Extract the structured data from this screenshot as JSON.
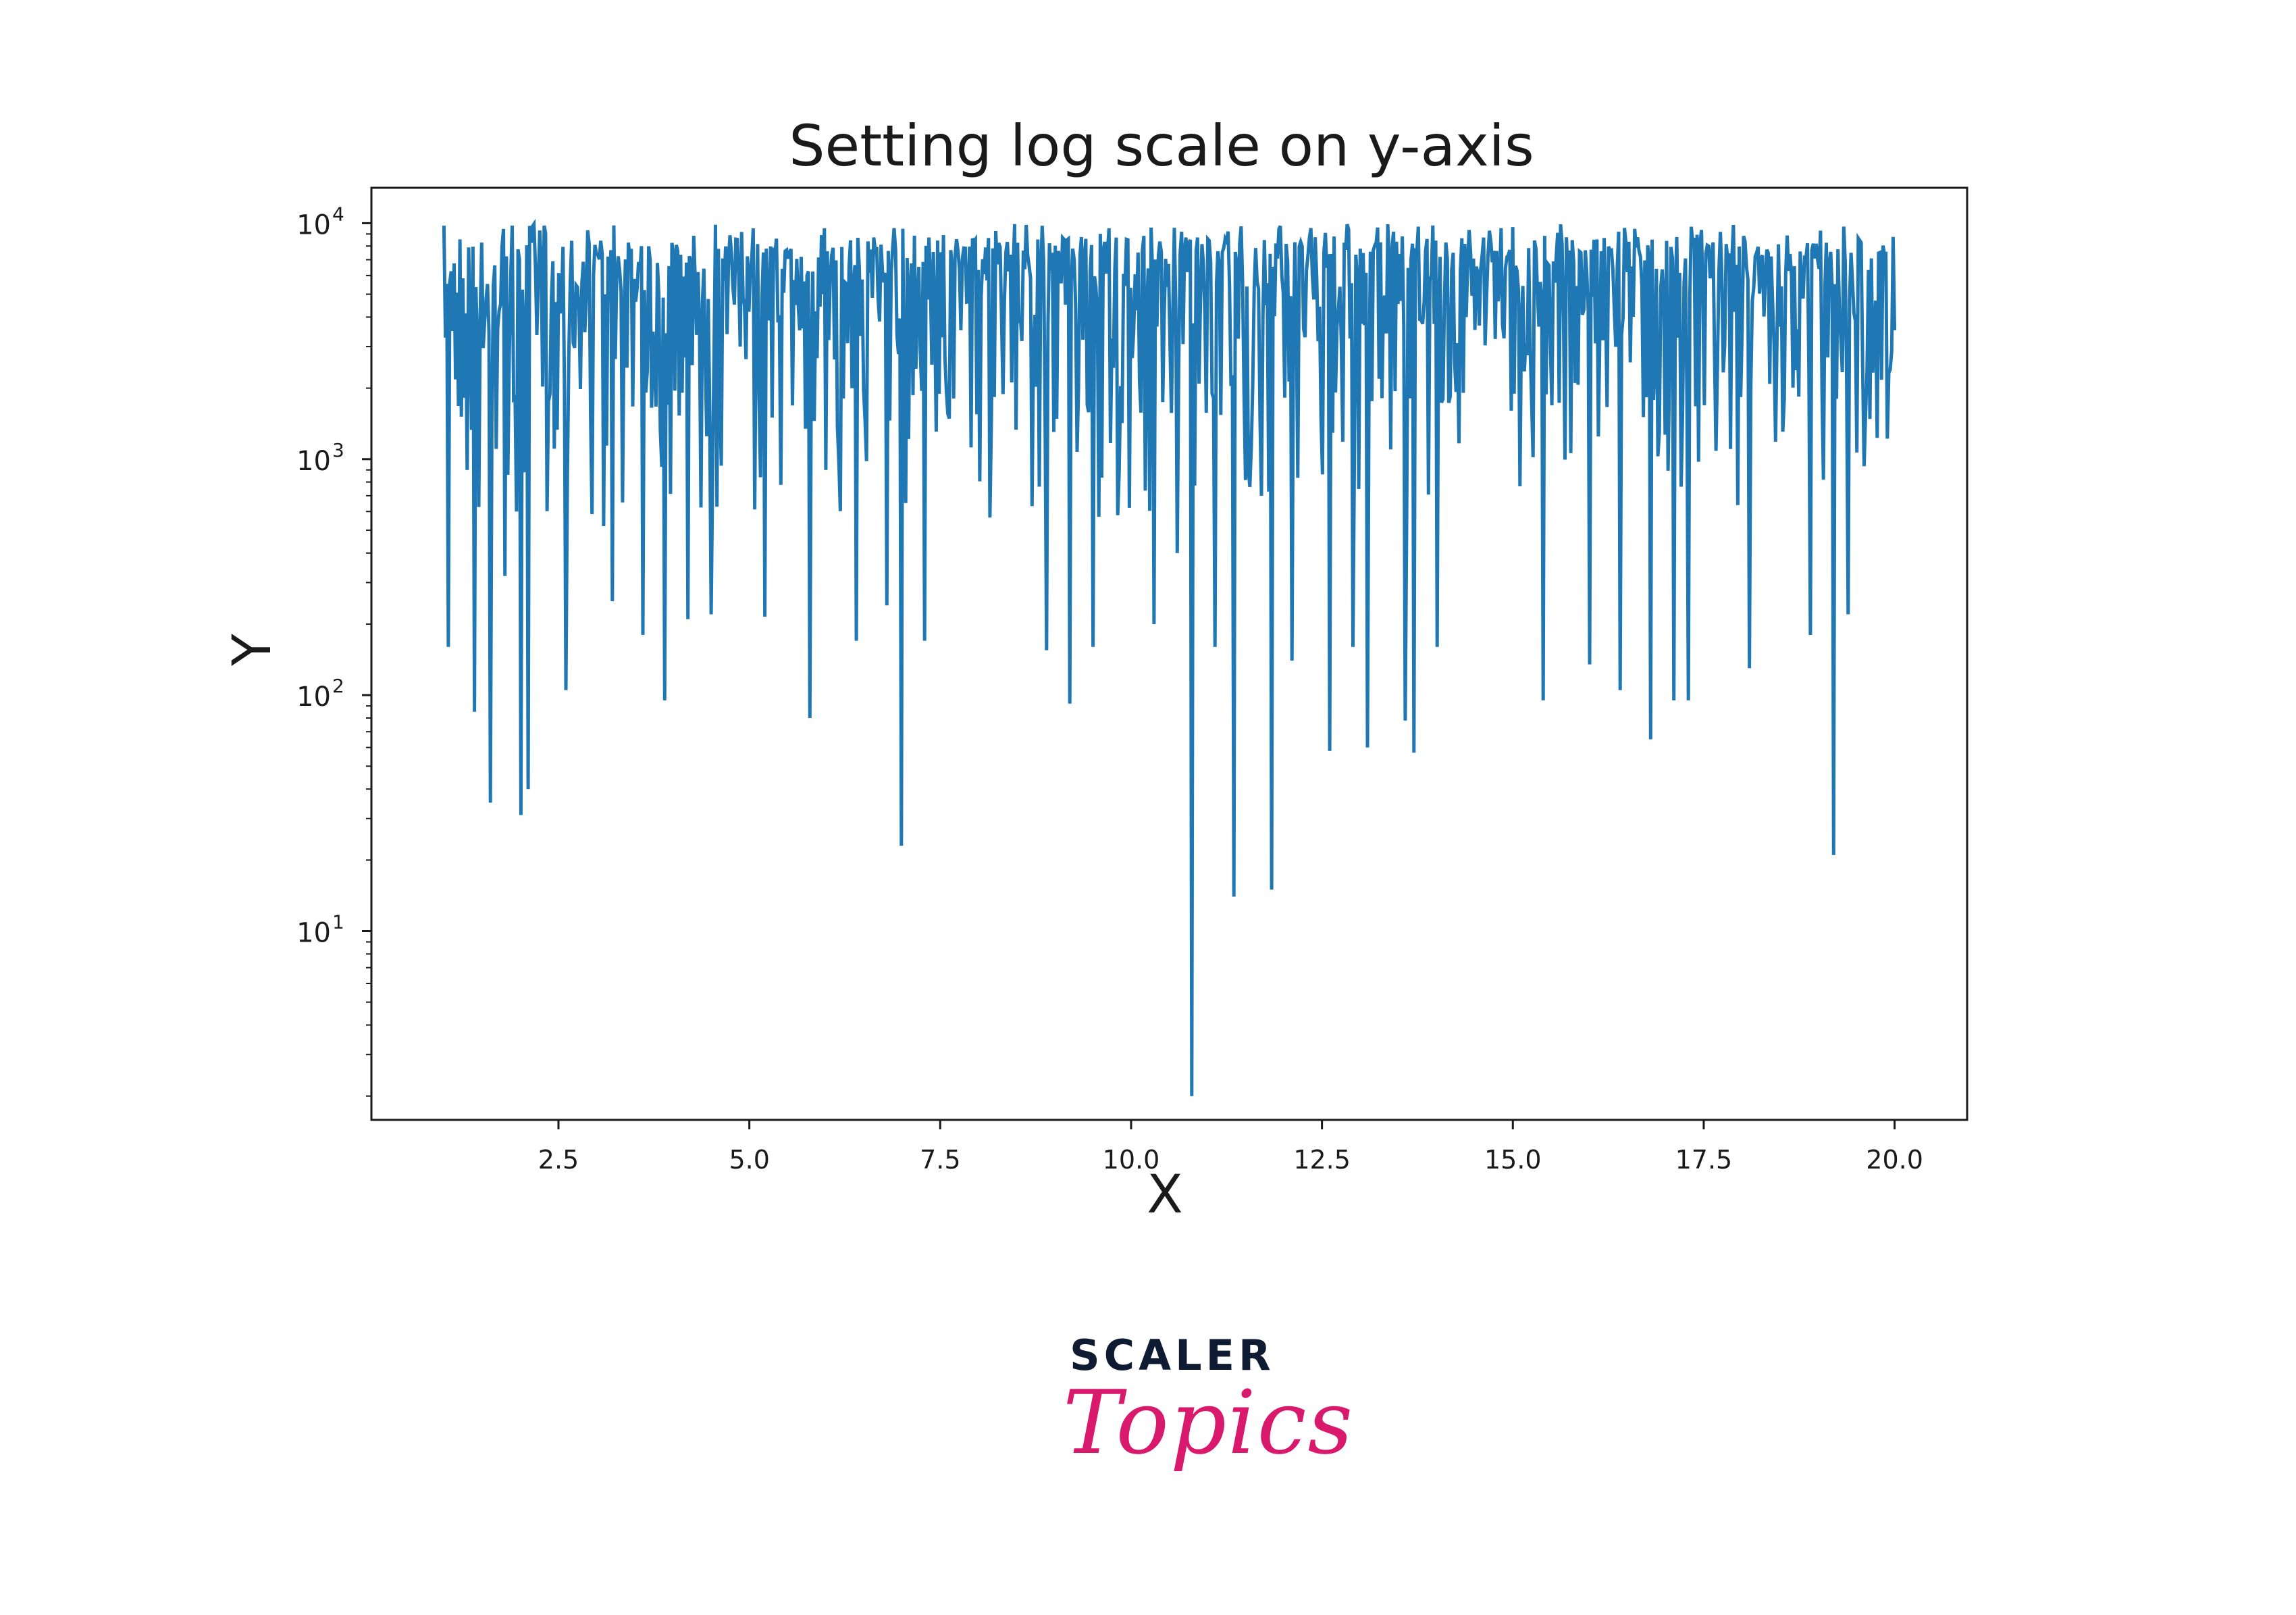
{
  "chart_data": {
    "type": "line",
    "title": "Setting log scale on y-axis",
    "xlabel": "X",
    "ylabel": "Y",
    "xlim": [
      0.05,
      20.95
    ],
    "ylim_log10": [
      0.2,
      4.15
    ],
    "y_scale": "log",
    "x_ticks": [
      "2.5",
      "5.0",
      "7.5",
      "10.0",
      "12.5",
      "15.0",
      "17.5",
      "20.0"
    ],
    "y_ticks": [
      {
        "base": "10",
        "exp": "1"
      },
      {
        "base": "10",
        "exp": "2"
      },
      {
        "base": "10",
        "exp": "3"
      },
      {
        "base": "10",
        "exp": "4"
      }
    ],
    "grid": false,
    "color": "#1f77b4",
    "series_note_points": 1000,
    "x_range": [
      1.0,
      20.0
    ],
    "y_range_typical": [
      1000,
      10000
    ],
    "y_min": 2,
    "spikes": [
      {
        "x": 1.05,
        "y": 160
      },
      {
        "x": 1.3,
        "y": 900
      },
      {
        "x": 1.4,
        "y": 85
      },
      {
        "x": 1.6,
        "y": 35
      },
      {
        "x": 1.8,
        "y": 320
      },
      {
        "x": 1.95,
        "y": 600
      },
      {
        "x": 2.0,
        "y": 31
      },
      {
        "x": 2.1,
        "y": 40
      },
      {
        "x": 2.6,
        "y": 105
      },
      {
        "x": 3.1,
        "y": 520
      },
      {
        "x": 3.2,
        "y": 250
      },
      {
        "x": 3.6,
        "y": 180
      },
      {
        "x": 3.9,
        "y": 95
      },
      {
        "x": 4.2,
        "y": 210
      },
      {
        "x": 4.5,
        "y": 220
      },
      {
        "x": 5.2,
        "y": 215
      },
      {
        "x": 5.8,
        "y": 80
      },
      {
        "x": 6.0,
        "y": 900
      },
      {
        "x": 6.4,
        "y": 170
      },
      {
        "x": 6.8,
        "y": 240
      },
      {
        "x": 7.0,
        "y": 23
      },
      {
        "x": 7.3,
        "y": 170
      },
      {
        "x": 8.9,
        "y": 155
      },
      {
        "x": 9.2,
        "y": 92
      },
      {
        "x": 9.5,
        "y": 160
      },
      {
        "x": 10.3,
        "y": 200
      },
      {
        "x": 10.6,
        "y": 400
      },
      {
        "x": 10.8,
        "y": 2
      },
      {
        "x": 11.1,
        "y": 160
      },
      {
        "x": 11.35,
        "y": 14
      },
      {
        "x": 11.7,
        "y": 700
      },
      {
        "x": 11.85,
        "y": 15
      },
      {
        "x": 12.1,
        "y": 140
      },
      {
        "x": 12.6,
        "y": 58
      },
      {
        "x": 12.9,
        "y": 160
      },
      {
        "x": 13.1,
        "y": 60
      },
      {
        "x": 13.6,
        "y": 78
      },
      {
        "x": 13.7,
        "y": 57
      },
      {
        "x": 14.0,
        "y": 160
      },
      {
        "x": 15.4,
        "y": 95
      },
      {
        "x": 16.0,
        "y": 135
      },
      {
        "x": 16.4,
        "y": 105
      },
      {
        "x": 16.8,
        "y": 65
      },
      {
        "x": 17.1,
        "y": 95
      },
      {
        "x": 17.3,
        "y": 95
      },
      {
        "x": 18.1,
        "y": 130
      },
      {
        "x": 18.9,
        "y": 180
      },
      {
        "x": 19.2,
        "y": 21
      },
      {
        "x": 19.4,
        "y": 220
      }
    ]
  },
  "logo": {
    "line1": "SCALER",
    "line2": "Topics"
  }
}
